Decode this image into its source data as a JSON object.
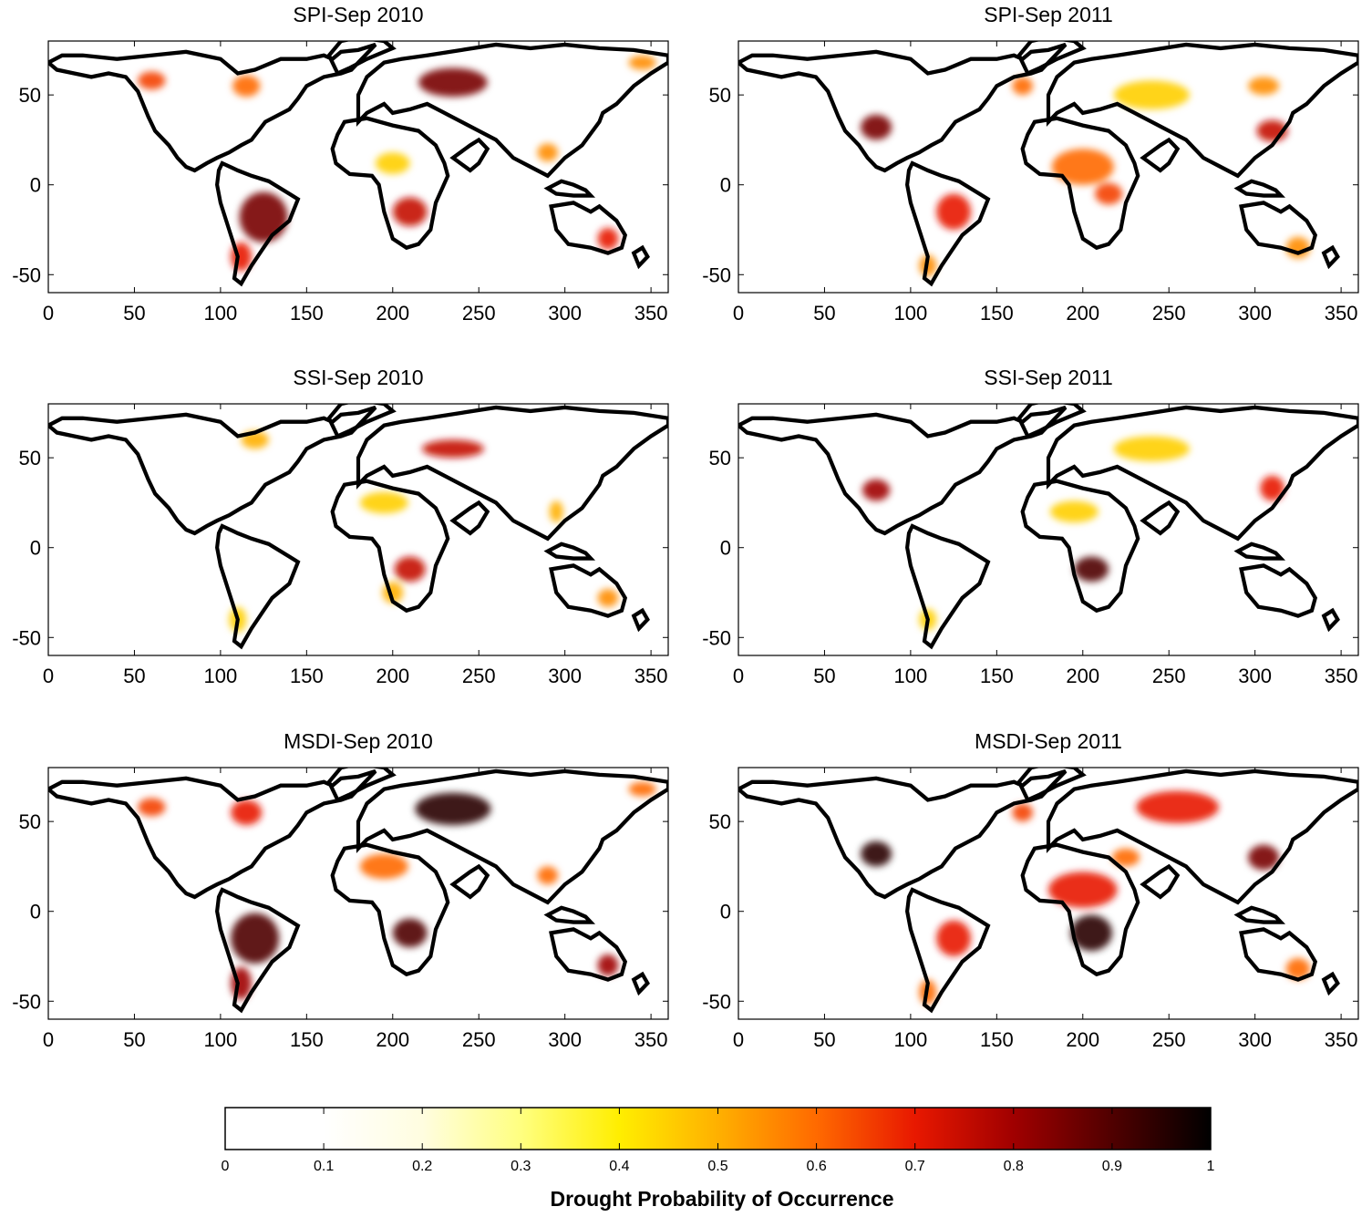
{
  "chart_data": [
    {
      "type": "heatmap",
      "title": "SPI-Sep 2010",
      "xlim": [
        0,
        360
      ],
      "ylim": [
        -60,
        80
      ],
      "xticks": [
        0,
        50,
        100,
        150,
        200,
        250,
        300,
        350
      ],
      "yticks": [
        -50,
        0,
        50
      ],
      "hotspots": [
        {
          "x": 125,
          "y": -18,
          "value": 0.85,
          "rx": 14,
          "ry": 14
        },
        {
          "x": 112,
          "y": -40,
          "value": 0.7,
          "rx": 6,
          "ry": 8
        },
        {
          "x": 235,
          "y": 57,
          "value": 0.85,
          "rx": 20,
          "ry": 8
        },
        {
          "x": 210,
          "y": -15,
          "value": 0.75,
          "rx": 10,
          "ry": 8
        },
        {
          "x": 325,
          "y": -30,
          "value": 0.7,
          "rx": 6,
          "ry": 6
        },
        {
          "x": 60,
          "y": 58,
          "value": 0.65,
          "rx": 8,
          "ry": 5
        },
        {
          "x": 115,
          "y": 55,
          "value": 0.6,
          "rx": 8,
          "ry": 6
        },
        {
          "x": 290,
          "y": 18,
          "value": 0.55,
          "rx": 6,
          "ry": 5
        },
        {
          "x": 200,
          "y": 12,
          "value": 0.45,
          "rx": 10,
          "ry": 6
        },
        {
          "x": 345,
          "y": 68,
          "value": 0.55,
          "rx": 8,
          "ry": 4
        }
      ]
    },
    {
      "type": "heatmap",
      "title": "SPI-Sep 2011",
      "xlim": [
        0,
        360
      ],
      "ylim": [
        -60,
        80
      ],
      "xticks": [
        0,
        50,
        100,
        150,
        200,
        250,
        300,
        350
      ],
      "yticks": [
        -50,
        0,
        50
      ],
      "hotspots": [
        {
          "x": 80,
          "y": 32,
          "value": 0.85,
          "rx": 9,
          "ry": 7
        },
        {
          "x": 125,
          "y": -15,
          "value": 0.7,
          "rx": 10,
          "ry": 10
        },
        {
          "x": 200,
          "y": 10,
          "value": 0.6,
          "rx": 18,
          "ry": 10
        },
        {
          "x": 215,
          "y": -5,
          "value": 0.65,
          "rx": 8,
          "ry": 6
        },
        {
          "x": 310,
          "y": 30,
          "value": 0.75,
          "rx": 9,
          "ry": 6
        },
        {
          "x": 305,
          "y": 55,
          "value": 0.55,
          "rx": 9,
          "ry": 5
        },
        {
          "x": 165,
          "y": 55,
          "value": 0.6,
          "rx": 6,
          "ry": 5
        },
        {
          "x": 325,
          "y": -35,
          "value": 0.55,
          "rx": 7,
          "ry": 6
        },
        {
          "x": 240,
          "y": 50,
          "value": 0.45,
          "rx": 22,
          "ry": 8
        },
        {
          "x": 110,
          "y": -45,
          "value": 0.55,
          "rx": 5,
          "ry": 6
        }
      ]
    },
    {
      "type": "heatmap",
      "title": "SSI-Sep 2010",
      "xlim": [
        0,
        360
      ],
      "ylim": [
        -60,
        80
      ],
      "xticks": [
        0,
        50,
        100,
        150,
        200,
        250,
        300,
        350
      ],
      "yticks": [
        -50,
        0,
        50
      ],
      "hotspots": [
        {
          "x": 235,
          "y": 55,
          "value": 0.75,
          "rx": 18,
          "ry": 5
        },
        {
          "x": 210,
          "y": -12,
          "value": 0.75,
          "rx": 9,
          "ry": 7
        },
        {
          "x": 200,
          "y": -25,
          "value": 0.5,
          "rx": 6,
          "ry": 6
        },
        {
          "x": 325,
          "y": -28,
          "value": 0.55,
          "rx": 6,
          "ry": 5
        },
        {
          "x": 195,
          "y": 25,
          "value": 0.45,
          "rx": 14,
          "ry": 6
        },
        {
          "x": 295,
          "y": 20,
          "value": 0.5,
          "rx": 4,
          "ry": 6
        },
        {
          "x": 120,
          "y": 60,
          "value": 0.5,
          "rx": 8,
          "ry": 5
        },
        {
          "x": 110,
          "y": -40,
          "value": 0.45,
          "rx": 5,
          "ry": 7
        }
      ]
    },
    {
      "type": "heatmap",
      "title": "SSI-Sep 2011",
      "xlim": [
        0,
        360
      ],
      "ylim": [
        -60,
        80
      ],
      "xticks": [
        0,
        50,
        100,
        150,
        200,
        250,
        300,
        350
      ],
      "yticks": [
        -50,
        0,
        50
      ],
      "hotspots": [
        {
          "x": 80,
          "y": 32,
          "value": 0.8,
          "rx": 8,
          "ry": 6
        },
        {
          "x": 205,
          "y": -12,
          "value": 0.9,
          "rx": 10,
          "ry": 7
        },
        {
          "x": 310,
          "y": 33,
          "value": 0.7,
          "rx": 7,
          "ry": 7
        },
        {
          "x": 195,
          "y": 20,
          "value": 0.45,
          "rx": 14,
          "ry": 6
        },
        {
          "x": 240,
          "y": 55,
          "value": 0.45,
          "rx": 22,
          "ry": 7
        },
        {
          "x": 110,
          "y": -40,
          "value": 0.45,
          "rx": 5,
          "ry": 6
        }
      ]
    },
    {
      "type": "heatmap",
      "title": "MSDI-Sep 2010",
      "xlim": [
        0,
        360
      ],
      "ylim": [
        -60,
        80
      ],
      "xticks": [
        0,
        50,
        100,
        150,
        200,
        250,
        300,
        350
      ],
      "yticks": [
        -50,
        0,
        50
      ],
      "hotspots": [
        {
          "x": 120,
          "y": -15,
          "value": 0.9,
          "rx": 14,
          "ry": 14
        },
        {
          "x": 112,
          "y": -40,
          "value": 0.8,
          "rx": 6,
          "ry": 9
        },
        {
          "x": 235,
          "y": 57,
          "value": 0.95,
          "rx": 22,
          "ry": 9
        },
        {
          "x": 210,
          "y": -12,
          "value": 0.9,
          "rx": 10,
          "ry": 8
        },
        {
          "x": 325,
          "y": -30,
          "value": 0.8,
          "rx": 6,
          "ry": 6
        },
        {
          "x": 195,
          "y": 25,
          "value": 0.6,
          "rx": 14,
          "ry": 7
        },
        {
          "x": 60,
          "y": 58,
          "value": 0.65,
          "rx": 8,
          "ry": 5
        },
        {
          "x": 115,
          "y": 55,
          "value": 0.7,
          "rx": 9,
          "ry": 7
        },
        {
          "x": 290,
          "y": 20,
          "value": 0.6,
          "rx": 6,
          "ry": 5
        },
        {
          "x": 345,
          "y": 68,
          "value": 0.6,
          "rx": 8,
          "ry": 4
        }
      ]
    },
    {
      "type": "heatmap",
      "title": "MSDI-Sep 2011",
      "xlim": [
        0,
        360
      ],
      "ylim": [
        -60,
        80
      ],
      "xticks": [
        0,
        50,
        100,
        150,
        200,
        250,
        300,
        350
      ],
      "yticks": [
        -50,
        0,
        50
      ],
      "hotspots": [
        {
          "x": 80,
          "y": 32,
          "value": 0.95,
          "rx": 9,
          "ry": 7
        },
        {
          "x": 205,
          "y": -12,
          "value": 0.95,
          "rx": 12,
          "ry": 10
        },
        {
          "x": 200,
          "y": 12,
          "value": 0.7,
          "rx": 20,
          "ry": 10
        },
        {
          "x": 305,
          "y": 30,
          "value": 0.85,
          "rx": 9,
          "ry": 7
        },
        {
          "x": 125,
          "y": -15,
          "value": 0.7,
          "rx": 10,
          "ry": 10
        },
        {
          "x": 255,
          "y": 58,
          "value": 0.7,
          "rx": 24,
          "ry": 9
        },
        {
          "x": 165,
          "y": 55,
          "value": 0.65,
          "rx": 6,
          "ry": 5
        },
        {
          "x": 325,
          "y": -32,
          "value": 0.6,
          "rx": 7,
          "ry": 6
        },
        {
          "x": 110,
          "y": -45,
          "value": 0.6,
          "rx": 5,
          "ry": 7
        },
        {
          "x": 225,
          "y": 30,
          "value": 0.6,
          "rx": 8,
          "ry": 5
        }
      ]
    }
  ],
  "colorbar": {
    "label": "Drought Probability of Occurrence",
    "range": [
      0,
      1
    ],
    "ticks": [
      "0",
      "0.1",
      "0.2",
      "0.3",
      "0.4",
      "0.5",
      "0.6",
      "0.7",
      "0.8",
      "0.9",
      "1"
    ],
    "colormap": "hot (reversed), white below 0.2",
    "stops": [
      "#ffffff",
      "#ffffff",
      "#fffde0",
      "#ffff80",
      "#ffee00",
      "#ffb000",
      "#ff6a00",
      "#e81800",
      "#a00000",
      "#500000",
      "#000000"
    ]
  },
  "colors": {
    "land_outline": "#000000",
    "axes": "#000000",
    "background": "#ffffff"
  }
}
